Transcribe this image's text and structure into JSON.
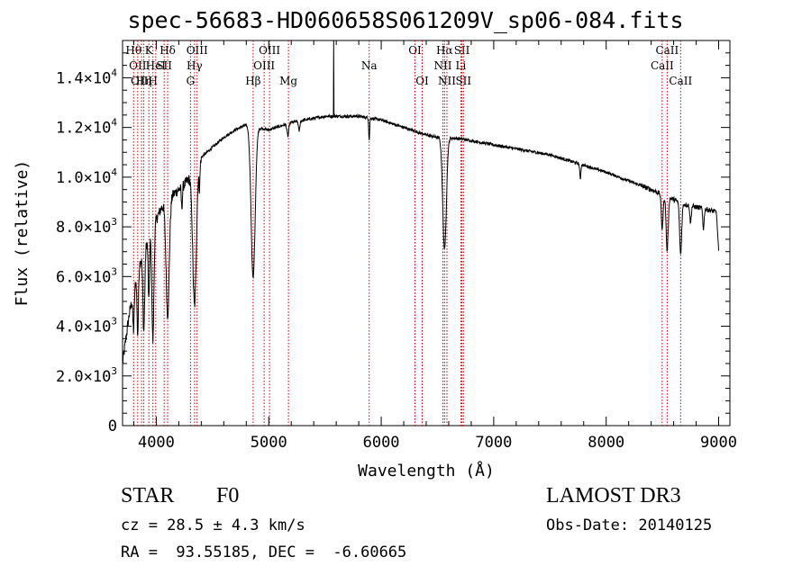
{
  "chart_data": {
    "type": "line",
    "title": "spec-56683-HD060658S061209V_sp06-084.fits",
    "xlabel": "Wavelength (Å)",
    "ylabel": "Flux (relative)",
    "xlim": [
      3700,
      9100
    ],
    "ylim": [
      0,
      15500
    ],
    "x_ticks": [
      4000,
      5000,
      6000,
      7000,
      8000,
      9000
    ],
    "x_tick_labels": [
      "4000",
      "5000",
      "6000",
      "7000",
      "8000",
      "9000"
    ],
    "y_ticks": [
      0,
      2000,
      4000,
      6000,
      8000,
      10000,
      12000,
      14000
    ],
    "y_tick_labels": [
      {
        "mantissa": "0",
        "exp": ""
      },
      {
        "mantissa": "2.0×10",
        "exp": "3"
      },
      {
        "mantissa": "4.0×10",
        "exp": "3"
      },
      {
        "mantissa": "6.0×10",
        "exp": "3"
      },
      {
        "mantissa": "8.0×10",
        "exp": "3"
      },
      {
        "mantissa": "1.0×10",
        "exp": "4"
      },
      {
        "mantissa": "1.2×10",
        "exp": "4"
      },
      {
        "mantissa": "1.4×10",
        "exp": "4"
      }
    ],
    "continuum": [
      [
        3700,
        2500
      ],
      [
        3760,
        4500
      ],
      [
        3850,
        6500
      ],
      [
        3950,
        7800
      ],
      [
        4050,
        8800
      ],
      [
        4150,
        9300
      ],
      [
        4250,
        9700
      ],
      [
        4300,
        10000
      ],
      [
        4400,
        10800
      ],
      [
        4500,
        11200
      ],
      [
        4600,
        11600
      ],
      [
        4700,
        11900
      ],
      [
        4800,
        12100
      ],
      [
        5000,
        11900
      ],
      [
        5200,
        12200
      ],
      [
        5500,
        12450
      ],
      [
        5800,
        12450
      ],
      [
        6000,
        12300
      ],
      [
        6200,
        12000
      ],
      [
        6400,
        11700
      ],
      [
        6500,
        11600
      ],
      [
        6700,
        11550
      ],
      [
        7000,
        11300
      ],
      [
        7500,
        10900
      ],
      [
        8000,
        10200
      ],
      [
        8400,
        9500
      ],
      [
        8700,
        8900
      ],
      [
        8900,
        8700
      ],
      [
        8980,
        8600
      ],
      [
        9000,
        7000
      ]
    ],
    "absorption_lines": [
      {
        "x": 3798,
        "depth": 1500,
        "width": 6
      },
      {
        "x": 3835,
        "depth": 2500,
        "width": 6
      },
      {
        "x": 3889,
        "depth": 3200,
        "width": 8
      },
      {
        "x": 3934,
        "depth": 2600,
        "width": 6
      },
      {
        "x": 3970,
        "depth": 4600,
        "width": 9
      },
      {
        "x": 4101,
        "depth": 4600,
        "width": 14
      },
      {
        "x": 4227,
        "depth": 800,
        "width": 5
      },
      {
        "x": 4340,
        "depth": 5500,
        "width": 16
      },
      {
        "x": 4384,
        "depth": 1000,
        "width": 5
      },
      {
        "x": 4861,
        "depth": 6100,
        "width": 18
      },
      {
        "x": 5170,
        "depth": 500,
        "width": 8
      },
      {
        "x": 5270,
        "depth": 400,
        "width": 6
      },
      {
        "x": 5893,
        "depth": 900,
        "width": 4
      },
      {
        "x": 6563,
        "depth": 4500,
        "width": 16
      },
      {
        "x": 7770,
        "depth": 600,
        "width": 5
      },
      {
        "x": 8498,
        "depth": 1400,
        "width": 8
      },
      {
        "x": 8542,
        "depth": 2200,
        "width": 9
      },
      {
        "x": 8662,
        "depth": 2100,
        "width": 9
      },
      {
        "x": 8750,
        "depth": 700,
        "width": 6
      },
      {
        "x": 8865,
        "depth": 800,
        "width": 6
      }
    ],
    "spikes": [
      {
        "x": 5577,
        "height": 16500
      }
    ],
    "line_markers": [
      {
        "x": 3798,
        "label": "Hθ",
        "row": 0
      },
      {
        "x": 3835,
        "label": "OII",
        "row": 1
      },
      {
        "x": 3869,
        "label": "OIII",
        "row": 2
      },
      {
        "x": 3889,
        "label": "Hη",
        "row": 2
      },
      {
        "x": 3934,
        "label": "K",
        "row": 0
      },
      {
        "x": 3970,
        "label": "H",
        "row": 2
      },
      {
        "x": 3995,
        "label": "HeI",
        "row": 1
      },
      {
        "x": 4070,
        "label": "SII",
        "row": 1
      },
      {
        "x": 4101,
        "label": "Hδ",
        "row": 0
      },
      {
        "x": 4304,
        "label": "G",
        "row": 2
      },
      {
        "x": 4340,
        "label": "Hγ",
        "row": 1
      },
      {
        "x": 4363,
        "label": "OIII",
        "row": 0
      },
      {
        "x": 4861,
        "label": "Hβ",
        "row": 2
      },
      {
        "x": 4959,
        "label": "OIII",
        "row": 1
      },
      {
        "x": 5007,
        "label": "OIII",
        "row": 0
      },
      {
        "x": 5175,
        "label": "Mg",
        "row": 2
      },
      {
        "x": 5893,
        "label": "Na",
        "row": 1
      },
      {
        "x": 6300,
        "label": "OI",
        "row": 0
      },
      {
        "x": 6364,
        "label": "OI",
        "row": 2
      },
      {
        "x": 6548,
        "label": "NII",
        "row": 1
      },
      {
        "x": 6563,
        "label": "Hα",
        "row": 0
      },
      {
        "x": 6584,
        "label": "NII",
        "row": 2
      },
      {
        "x": 6708,
        "label": "Li",
        "row": 1
      },
      {
        "x": 6717,
        "label": "SII",
        "row": 0
      },
      {
        "x": 6731,
        "label": "SII",
        "row": 2
      },
      {
        "x": 8498,
        "label": "CaII",
        "row": 1
      },
      {
        "x": 8542,
        "label": "CaII",
        "row": 0
      },
      {
        "x": 8662,
        "label": "CaII",
        "row": 2
      }
    ],
    "marker_color": "#cc0000",
    "line_color": "#000000",
    "grid": false
  },
  "info": {
    "object_class": "STAR",
    "subclass": "F0",
    "survey": "LAMOST DR3",
    "redshift": "cz = 28.5 ± 4.3 km/s",
    "obs_date": "Obs-Date: 20140125",
    "coords": "RA =  93.55185, DEC =  -6.60665"
  }
}
